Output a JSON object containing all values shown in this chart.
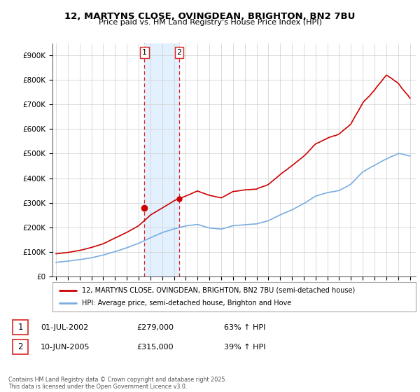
{
  "title1": "12, MARTYNS CLOSE, OVINGDEAN, BRIGHTON, BN2 7BU",
  "title2": "Price paid vs. HM Land Registry's House Price Index (HPI)",
  "ylabel_ticks": [
    "£0",
    "£100K",
    "£200K",
    "£300K",
    "£400K",
    "£500K",
    "£600K",
    "£700K",
    "£800K",
    "£900K"
  ],
  "ytick_values": [
    0,
    100000,
    200000,
    300000,
    400000,
    500000,
    600000,
    700000,
    800000,
    900000
  ],
  "ylim": [
    0,
    950000
  ],
  "purchase1_date": "01-JUL-2002",
  "purchase1_price": 279000,
  "purchase1_pct": "63% ↑ HPI",
  "purchase2_date": "10-JUN-2005",
  "purchase2_price": 315000,
  "purchase2_pct": "39% ↑ HPI",
  "purchase1_x": 2002.5,
  "purchase2_x": 2005.45,
  "legend_line1": "12, MARTYNS CLOSE, OVINGDEAN, BRIGHTON, BN2 7BU (semi-detached house)",
  "legend_line2": "HPI: Average price, semi-detached house, Brighton and Hove",
  "footer": "Contains HM Land Registry data © Crown copyright and database right 2025.\nThis data is licensed under the Open Government Licence v3.0.",
  "line_color_red": "#cc0000",
  "line_color_blue": "#7aade0",
  "shaded_color": "#ddeeff",
  "vline_color": "#dd2222",
  "background_color": "#ffffff",
  "xlim_left": 1994.7,
  "xlim_right": 2025.5
}
